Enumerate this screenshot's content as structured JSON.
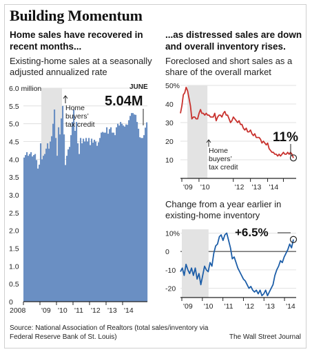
{
  "title": "Building Momentum",
  "left": {
    "subtitle": "Home sales have recovered in recent months...",
    "description": "Existing-home sales at a seasonally adjusted annualized rate"
  },
  "right_top": {
    "subtitle": "...as distressed sales are down and overall inventory rises.",
    "description": "Foreclosed and short sales as a share of the overall market"
  },
  "right_bottom": {
    "description": "Change from a year earlier in existing-home inventory"
  },
  "footer": {
    "source": "Source: National Association of Realtors (total sales/inventory via Federal Reserve Bank of St. Louis)",
    "publisher": "The Wall Street Journal"
  },
  "colors": {
    "bars": "#6a8fc3",
    "line_red": "#c8312d",
    "line_blue": "#1d5ea8",
    "shade": "#e3e3e3"
  },
  "chart_data": [
    {
      "type": "bar",
      "ylim": [
        0,
        6.0
      ],
      "yticks": [
        "6.0 million",
        "5.5",
        "5.0",
        "4.5",
        "4.0",
        "3.5",
        "3.0",
        "2.5",
        "2.0",
        "1.5",
        "1.0",
        "0.5",
        "0"
      ],
      "xticks": [
        "2008",
        "'09",
        "'10",
        "'11",
        "'12",
        "'13",
        "'14"
      ],
      "shaded_period": [
        "2009-02",
        "2010-04"
      ],
      "annotation": "Home buyers' tax credit",
      "callout_label": "JUNE",
      "callout_value": "5.04M",
      "series": [
        {
          "values": [
            4.05,
            4.12,
            4.2,
            4.1,
            4.15,
            4.2,
            4.08,
            4.12,
            4.15,
            3.98,
            3.74,
            3.85,
            4.45,
            4.0,
            4.1,
            4.15,
            4.3,
            4.45,
            4.3,
            4.5,
            4.65,
            5.0,
            5.4,
            4.6,
            4.1,
            4.9,
            4.7,
            5.15,
            5.5,
            4.7,
            3.84,
            4.1,
            4.28,
            4.35,
            4.68,
            5.05,
            5.4,
            4.8,
            5.05,
            4.45,
            4.15,
            4.6,
            4.45,
            4.58,
            4.5,
            4.6,
            4.5,
            4.6,
            4.4,
            4.58,
            4.47,
            4.55,
            4.5,
            4.38,
            4.48,
            4.6,
            4.75,
            4.77,
            4.75,
            4.75,
            4.9,
            4.72,
            4.85,
            4.9,
            4.75,
            4.75,
            4.68,
            4.9,
            5.0,
            4.95,
            5.05,
            5.0,
            4.95,
            4.92,
            4.98,
            4.97,
            5.1,
            5.22,
            5.3,
            5.3,
            5.26,
            5.25,
            5.05,
            4.86,
            4.62,
            4.6,
            4.6,
            4.68,
            4.89,
            5.04
          ]
        }
      ]
    },
    {
      "type": "line",
      "ylim": [
        0,
        50
      ],
      "yticks": [
        "50%",
        "40",
        "30",
        "20",
        "10"
      ],
      "xticks": [
        "'09",
        "'10",
        "'12",
        "'13",
        "'14"
      ],
      "shaded_period": [
        "2009-02",
        "2010-04"
      ],
      "annotation": "Home buyers' tax credit",
      "callout_value": "11%",
      "series": [
        {
          "values": [
            35,
            39,
            45,
            46,
            49,
            47,
            43,
            39,
            32,
            33,
            33,
            32,
            32,
            35,
            37,
            35,
            35,
            34,
            35,
            34,
            34,
            33,
            33,
            33,
            35,
            31,
            33,
            34,
            34,
            33,
            35,
            36,
            34,
            34,
            32,
            30,
            31,
            33,
            32,
            31,
            30,
            31,
            29,
            29,
            27,
            26,
            27,
            25,
            25,
            26,
            24,
            23,
            24,
            22,
            22,
            22,
            21,
            19,
            20,
            19,
            18,
            19,
            16,
            15,
            14,
            14,
            13,
            13,
            12,
            13,
            12,
            13,
            14,
            13,
            13,
            14,
            13,
            14,
            13,
            11
          ]
        }
      ]
    },
    {
      "type": "line",
      "ylim": [
        -25,
        12
      ],
      "yticks": [
        "10%",
        "0",
        "-10",
        "-20"
      ],
      "xticks": [
        "'09",
        "'10",
        "'11",
        "'12",
        "'13",
        "'14"
      ],
      "shaded_period": [
        "2009-02",
        "2010-04"
      ],
      "callout_value": "+6.5%",
      "series": [
        {
          "values": [
            -11,
            -9,
            -13,
            -7,
            -10,
            -12,
            -9,
            -13,
            -9,
            -15,
            -12,
            -18,
            -13,
            -8,
            -10,
            -11,
            -6,
            -8,
            -1,
            3,
            4,
            8,
            9,
            6,
            9,
            10,
            6,
            2,
            -4,
            -3,
            -6,
            -9,
            -11,
            -13,
            -15,
            -16,
            -18,
            -20,
            -19,
            -21,
            -22,
            -21,
            -23,
            -21,
            -24,
            -23,
            -21,
            -24,
            -22,
            -20,
            -18,
            -13,
            -10,
            -8,
            -5,
            -6,
            -3,
            -1,
            1,
            4,
            2,
            6.5
          ]
        }
      ]
    }
  ]
}
